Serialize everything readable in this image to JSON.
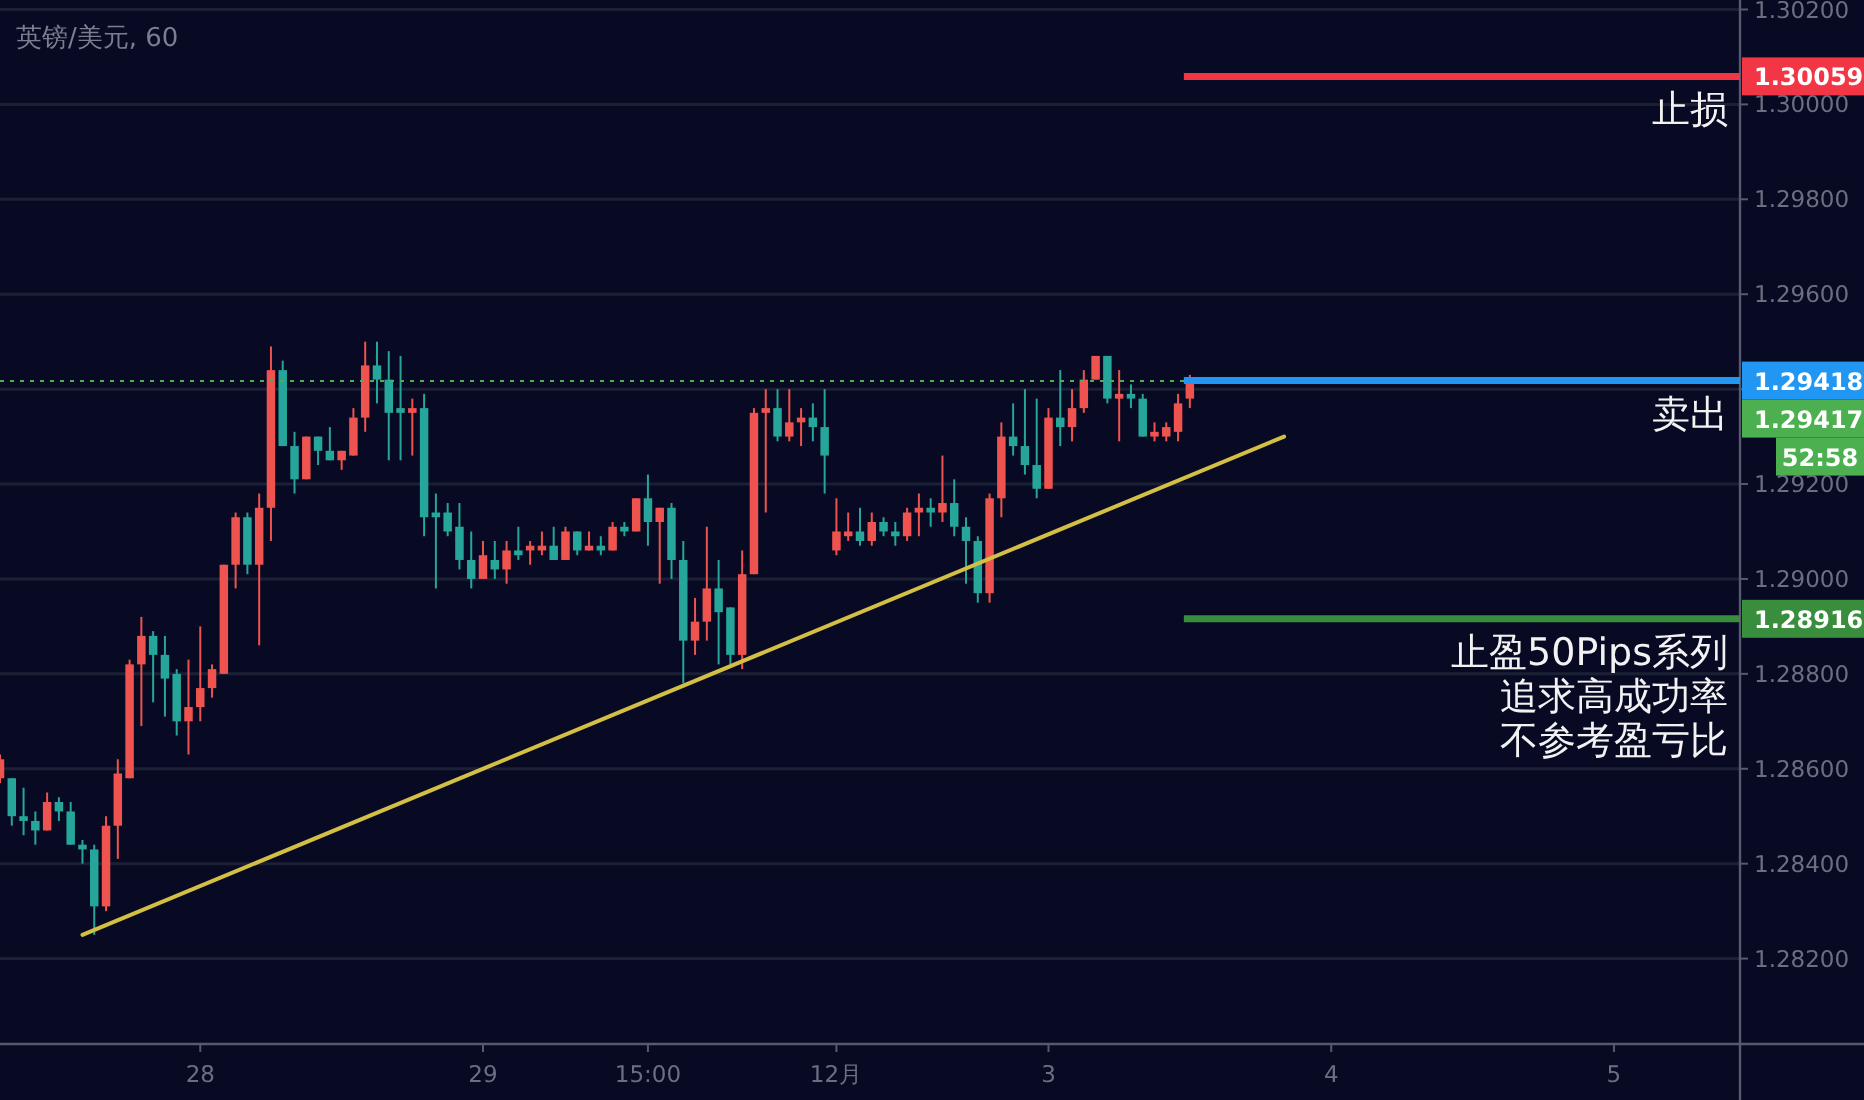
{
  "chart_data": {
    "type": "candlestick",
    "title": "英镑/美元, 60",
    "categories": [
      null,
      null,
      null,
      null,
      null,
      null,
      null,
      null,
      null,
      null,
      null,
      null,
      null,
      null,
      null,
      null,
      null,
      "28",
      null,
      null,
      null,
      null,
      null,
      null,
      null,
      null,
      null,
      null,
      null,
      null,
      null,
      null,
      null,
      null,
      null,
      null,
      null,
      null,
      null,
      null,
      null,
      "29",
      null,
      null,
      null,
      null,
      null,
      null,
      null,
      null,
      null,
      null,
      null,
      null,
      null,
      "15:00",
      null,
      null,
      null,
      null,
      null,
      null,
      null,
      null,
      null,
      null,
      null,
      null,
      null,
      null,
      null,
      "12月",
      null,
      null,
      null,
      null,
      null,
      null,
      null,
      null,
      null,
      null,
      null,
      null,
      null,
      null,
      null,
      null,
      null,
      "3",
      null,
      null,
      null,
      null,
      null,
      null,
      null,
      null,
      null,
      null,
      null,
      null,
      null,
      null,
      null,
      null,
      null,
      null,
      null,
      null,
      null,
      null,
      null,
      "4",
      null,
      null,
      null,
      null,
      null,
      null,
      null,
      null,
      null,
      null,
      null,
      null,
      null,
      null,
      null,
      null,
      null,
      null,
      null,
      null,
      null,
      null,
      null,
      "5",
      null,
      null,
      null,
      null,
      null,
      null,
      null,
      null,
      null,
      null
    ],
    "ylim": [
      1.2802,
      1.3022
    ],
    "yticks": [
      {
        "value": 1.282,
        "label": "1.28200"
      },
      {
        "value": 1.284,
        "label": "1.28400"
      },
      {
        "value": 1.286,
        "label": "1.28600"
      },
      {
        "value": 1.288,
        "label": "1.28800"
      },
      {
        "value": 1.29,
        "label": "1.29000"
      },
      {
        "value": 1.292,
        "label": "1.29200"
      },
      {
        "value": 1.294,
        "label": null
      },
      {
        "value": 1.296,
        "label": "1.29600"
      },
      {
        "value": 1.298,
        "label": "1.29800"
      },
      {
        "value": 1.3,
        "label": "1.30000"
      },
      {
        "value": 1.302,
        "label": "1.30200"
      }
    ],
    "grid": "y",
    "series": [
      {
        "type": "candlestick",
        "ohlc": [
          [
            1.2858,
            1.2863,
            1.2857,
            1.2862
          ],
          [
            1.2858,
            1.2858,
            1.2848,
            1.285
          ],
          [
            1.285,
            1.2856,
            1.2846,
            1.2849
          ],
          [
            1.2849,
            1.2851,
            1.2844,
            1.2847
          ],
          [
            1.2847,
            1.2855,
            1.2847,
            1.2853
          ],
          [
            1.2853,
            1.2854,
            1.2849,
            1.2851
          ],
          [
            1.2851,
            1.2853,
            1.2844,
            1.2844
          ],
          [
            1.2844,
            1.2845,
            1.284,
            1.2843
          ],
          [
            1.2843,
            1.2844,
            1.2825,
            1.2831
          ],
          [
            1.2831,
            1.285,
            1.283,
            1.2848
          ],
          [
            1.2848,
            1.2862,
            1.2841,
            1.2859
          ],
          [
            1.2858,
            1.2883,
            1.2858,
            1.2882
          ],
          [
            1.2882,
            1.2892,
            1.2869,
            1.2888
          ],
          [
            1.2888,
            1.2889,
            1.2874,
            1.2884
          ],
          [
            1.2884,
            1.2888,
            1.2871,
            1.2879
          ],
          [
            1.288,
            1.2881,
            1.2867,
            1.287
          ],
          [
            1.287,
            1.2883,
            1.2863,
            1.2873
          ],
          [
            1.2873,
            1.289,
            1.287,
            1.2877
          ],
          [
            1.2877,
            1.2882,
            1.2875,
            1.2881
          ],
          [
            1.288,
            1.2903,
            1.288,
            1.2903
          ],
          [
            1.2903,
            1.2914,
            1.2898,
            1.2913
          ],
          [
            1.2913,
            1.2914,
            1.2901,
            1.2903
          ],
          [
            1.2903,
            1.2918,
            1.2886,
            1.2915
          ],
          [
            1.2915,
            1.2949,
            1.2908,
            1.2944
          ],
          [
            1.2944,
            1.2946,
            1.2928,
            1.2928
          ],
          [
            1.2928,
            1.2931,
            1.2918,
            1.2921
          ],
          [
            1.2921,
            1.293,
            1.2921,
            1.293
          ],
          [
            1.293,
            1.293,
            1.2924,
            1.2927
          ],
          [
            1.2927,
            1.2932,
            1.2925,
            1.2925
          ],
          [
            1.2925,
            1.2927,
            1.2923,
            1.2927
          ],
          [
            1.2926,
            1.2936,
            1.2926,
            1.2934
          ],
          [
            1.2934,
            1.295,
            1.2931,
            1.2945
          ],
          [
            1.2945,
            1.295,
            1.2937,
            1.2942
          ],
          [
            1.2942,
            1.2948,
            1.2925,
            1.2935
          ],
          [
            1.2936,
            1.2947,
            1.2925,
            1.2935
          ],
          [
            1.2935,
            1.2938,
            1.2926,
            1.2936
          ],
          [
            1.2936,
            1.2939,
            1.2909,
            1.2913
          ],
          [
            1.2914,
            1.2918,
            1.2898,
            1.2913
          ],
          [
            1.2914,
            1.2916,
            1.2909,
            1.291
          ],
          [
            1.2911,
            1.2916,
            1.2902,
            1.2904
          ],
          [
            1.2904,
            1.291,
            1.2898,
            1.29
          ],
          [
            1.29,
            1.2908,
            1.29,
            1.2905
          ],
          [
            1.2904,
            1.2908,
            1.29,
            1.2902
          ],
          [
            1.2902,
            1.2908,
            1.2899,
            1.2906
          ],
          [
            1.2906,
            1.2911,
            1.2904,
            1.2905
          ],
          [
            1.2906,
            1.2908,
            1.2903,
            1.2907
          ],
          [
            1.2906,
            1.291,
            1.2905,
            1.2907
          ],
          [
            1.2907,
            1.2911,
            1.2904,
            1.2904
          ],
          [
            1.2904,
            1.2911,
            1.2904,
            1.291
          ],
          [
            1.291,
            1.291,
            1.2905,
            1.2906
          ],
          [
            1.2906,
            1.291,
            1.2906,
            1.2907
          ],
          [
            1.2907,
            1.2909,
            1.2905,
            1.2906
          ],
          [
            1.2906,
            1.2912,
            1.2906,
            1.2911
          ],
          [
            1.2911,
            1.2912,
            1.2909,
            1.291
          ],
          [
            1.291,
            1.2917,
            1.291,
            1.2917
          ],
          [
            1.2917,
            1.2922,
            1.2907,
            1.2912
          ],
          [
            1.2912,
            1.2915,
            1.2899,
            1.2915
          ],
          [
            1.2915,
            1.2916,
            1.29,
            1.2904
          ],
          [
            1.2904,
            1.2908,
            1.2878,
            1.2887
          ],
          [
            1.2887,
            1.2896,
            1.2884,
            1.2891
          ],
          [
            1.2891,
            1.2911,
            1.2887,
            1.2898
          ],
          [
            1.2898,
            1.2904,
            1.2882,
            1.2893
          ],
          [
            1.2894,
            1.2894,
            1.2882,
            1.2884
          ],
          [
            1.2884,
            1.2906,
            1.2881,
            1.2901
          ],
          [
            1.2901,
            1.2936,
            1.2901,
            1.2935
          ],
          [
            1.2935,
            1.294,
            1.2914,
            1.2936
          ],
          [
            1.2936,
            1.294,
            1.2929,
            1.293
          ],
          [
            1.293,
            1.294,
            1.2929,
            1.2933
          ],
          [
            1.2933,
            1.2936,
            1.2928,
            1.2934
          ],
          [
            1.2934,
            1.2937,
            1.2929,
            1.2932
          ],
          [
            1.2932,
            1.294,
            1.2918,
            1.2926
          ],
          [
            1.2906,
            1.2917,
            1.2905,
            1.291
          ],
          [
            1.2909,
            1.2914,
            1.2908,
            1.291
          ],
          [
            1.291,
            1.2915,
            1.2907,
            1.2908
          ],
          [
            1.2908,
            1.2914,
            1.2907,
            1.2912
          ],
          [
            1.2912,
            1.2913,
            1.2909,
            1.291
          ],
          [
            1.291,
            1.2912,
            1.2907,
            1.2909
          ],
          [
            1.2909,
            1.2915,
            1.2908,
            1.2914
          ],
          [
            1.2914,
            1.2918,
            1.2909,
            1.2915
          ],
          [
            1.2915,
            1.2917,
            1.2911,
            1.2914
          ],
          [
            1.2914,
            1.2926,
            1.2912,
            1.2916
          ],
          [
            1.2916,
            1.2921,
            1.2909,
            1.2911
          ],
          [
            1.2911,
            1.2913,
            1.2899,
            1.2908
          ],
          [
            1.2908,
            1.2909,
            1.2895,
            1.2897
          ],
          [
            1.2897,
            1.2918,
            1.2895,
            1.2917
          ],
          [
            1.2917,
            1.2933,
            1.2913,
            1.293
          ],
          [
            1.293,
            1.2937,
            1.2926,
            1.2928
          ],
          [
            1.2928,
            1.294,
            1.2922,
            1.2924
          ],
          [
            1.2924,
            1.2938,
            1.2917,
            1.2919
          ],
          [
            1.2919,
            1.2936,
            1.2919,
            1.2934
          ],
          [
            1.2934,
            1.2944,
            1.2928,
            1.2932
          ],
          [
            1.2932,
            1.294,
            1.2929,
            1.2936
          ],
          [
            1.2936,
            1.2944,
            1.2935,
            1.2942
          ],
          [
            1.2942,
            1.2947,
            1.2942,
            1.2947
          ],
          [
            1.2947,
            1.2947,
            1.2937,
            1.2938
          ],
          [
            1.2938,
            1.2944,
            1.2929,
            1.2939
          ],
          [
            1.2939,
            1.2941,
            1.2936,
            1.2938
          ],
          [
            1.2938,
            1.2939,
            1.293,
            1.293
          ],
          [
            1.293,
            1.2933,
            1.2929,
            1.2931
          ],
          [
            1.293,
            1.2933,
            1.2929,
            1.2932
          ],
          [
            1.2931,
            1.2939,
            1.2929,
            1.2937
          ],
          [
            1.2938,
            1.2943,
            1.2936,
            1.29417
          ],
          null,
          null,
          null,
          null,
          null,
          null,
          null,
          null,
          null,
          null,
          null,
          null,
          null,
          null,
          null,
          null,
          null,
          null,
          null,
          null,
          null,
          null,
          null,
          null,
          null,
          null,
          null,
          null,
          null,
          null,
          null,
          null,
          null,
          null,
          null,
          null,
          null,
          null,
          null,
          null,
          null,
          null,
          null,
          null,
          null,
          null
        ],
        "colors": [
          "#ef5350",
          "#26a69a",
          "#26a69a",
          "#26a69a",
          "#ef5350",
          "#26a69a",
          "#26a69a",
          "#26a69a",
          "#26a69a",
          "#ef5350",
          "#ef5350",
          "#ef5350",
          "#ef5350",
          "#26a69a",
          "#26a69a",
          "#26a69a",
          "#ef5350",
          "#ef5350",
          "#ef5350",
          "#ef5350",
          "#ef5350",
          "#26a69a",
          "#ef5350",
          "#ef5350",
          "#26a69a",
          "#26a69a",
          "#ef5350",
          "#26a69a",
          "#26a69a",
          "#ef5350",
          "#ef5350",
          "#ef5350",
          "#26a69a",
          "#26a69a",
          "#26a69a",
          "#ef5350",
          "#26a69a",
          "#26a69a",
          "#26a69a",
          "#26a69a",
          "#26a69a",
          "#ef5350",
          "#26a69a",
          "#ef5350",
          "#26a69a",
          "#ef5350",
          "#ef5350",
          "#26a69a",
          "#ef5350",
          "#26a69a",
          "#ef5350",
          "#26a69a",
          "#ef5350",
          "#26a69a",
          "#ef5350",
          "#26a69a",
          "#ef5350",
          "#26a69a",
          "#26a69a",
          "#ef5350",
          "#ef5350",
          "#26a69a",
          "#26a69a",
          "#ef5350",
          "#ef5350",
          "#ef5350",
          "#26a69a",
          "#ef5350",
          "#ef5350",
          "#26a69a",
          "#26a69a",
          "#ef5350",
          "#ef5350",
          "#26a69a",
          "#ef5350",
          "#26a69a",
          "#26a69a",
          "#ef5350",
          "#ef5350",
          "#26a69a",
          "#ef5350",
          "#26a69a",
          "#26a69a",
          "#26a69a",
          "#ef5350",
          "#ef5350",
          "#26a69a",
          "#26a69a",
          "#26a69a",
          "#ef5350",
          "#26a69a",
          "#ef5350",
          "#ef5350",
          "#ef5350",
          "#26a69a",
          "#ef5350",
          "#26a69a",
          "#26a69a",
          "#ef5350",
          "#ef5350",
          "#ef5350",
          "#ef5350",
          null,
          null,
          null,
          null,
          null,
          null,
          null,
          null,
          null,
          null,
          null,
          null,
          null,
          null,
          null,
          null,
          null,
          null,
          null,
          null,
          null,
          null,
          null,
          null,
          null,
          null,
          null,
          null,
          null,
          null,
          null,
          null,
          null,
          null,
          null,
          null,
          null,
          null,
          null,
          null,
          null,
          null,
          null,
          null,
          null,
          null
        ]
      },
      {
        "type": "line",
        "values": [
          null,
          null,
          null,
          null,
          null,
          null,
          null,
          1.2825,
          null,
          null,
          null,
          null,
          null,
          null,
          null,
          null,
          null,
          null,
          null,
          null,
          null,
          null,
          null,
          null,
          null,
          null,
          null,
          null,
          null,
          null,
          null,
          null,
          null,
          null,
          null,
          null,
          null,
          null,
          null,
          null,
          null,
          null,
          null,
          null,
          null,
          null,
          null,
          null,
          null,
          null,
          null,
          null,
          null,
          null,
          null,
          null,
          null,
          null,
          null,
          null,
          null,
          null,
          null,
          null,
          null,
          null,
          null,
          null,
          null,
          null,
          null,
          null,
          null,
          null,
          null,
          null,
          null,
          null,
          null,
          null,
          null,
          null,
          null,
          null,
          null,
          null,
          null,
          null,
          null,
          null,
          null,
          null,
          null,
          null,
          null,
          null,
          null,
          null,
          null,
          null,
          null,
          null,
          null,
          null,
          null,
          null,
          null,
          null,
          null,
          1.293,
          null,
          null,
          null,
          null,
          null,
          null,
          null,
          null,
          null,
          null,
          null,
          null,
          null,
          null,
          null,
          null,
          null,
          null,
          null,
          null,
          null,
          null,
          null,
          null,
          null,
          null,
          null,
          null,
          null,
          null,
          null,
          null,
          null,
          null,
          null,
          null,
          null,
          null
        ],
        "color": "#d4bf45"
      }
    ],
    "ref_lines": [
      {
        "axis": "y",
        "value": 1.30059,
        "label": "止损",
        "color": "#f23645"
      },
      {
        "axis": "y",
        "value": 1.29417,
        "color": "#4caf50",
        "line_style": "dotted"
      },
      {
        "axis": "y",
        "value": 1.29418,
        "label": "卖出",
        "color": "#2196f3"
      },
      {
        "axis": "y",
        "value": 1.28916,
        "label": "止盈50Pips系列",
        "color": "#388e3c"
      }
    ],
    "annotations": [
      "52:58",
      "追求高成功率",
      "不参考盈亏比",
      "1.30059",
      "1.29417",
      "1.29418",
      "1.28916"
    ]
  }
}
